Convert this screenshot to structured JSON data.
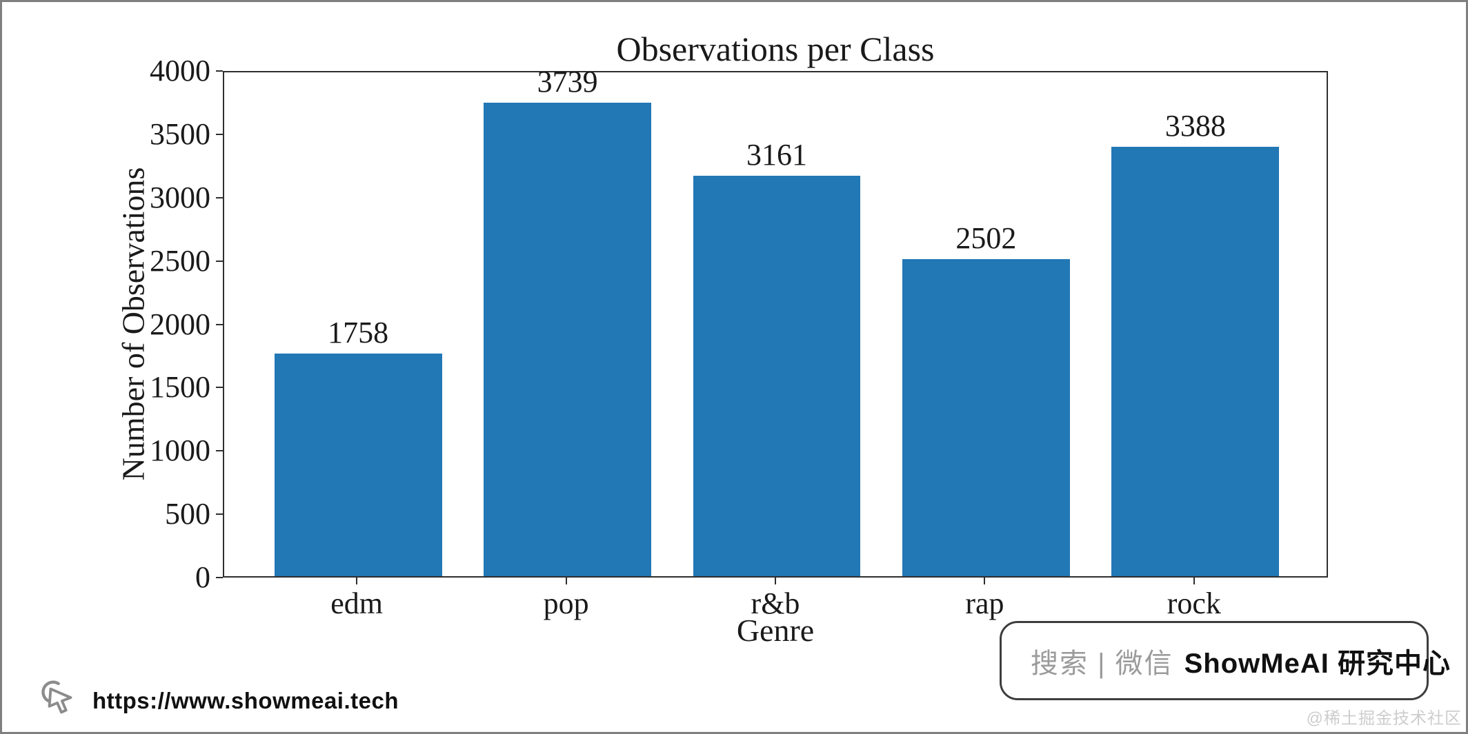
{
  "chart_data": {
    "type": "bar",
    "title": "Observations per Class",
    "xlabel": "Genre",
    "ylabel": "Number of Observations",
    "categories": [
      "edm",
      "pop",
      "r&b",
      "rap",
      "rock"
    ],
    "values": [
      1758,
      3739,
      3161,
      2502,
      3388
    ],
    "ylim": [
      0,
      4000
    ],
    "yticks": [
      0,
      500,
      1000,
      1500,
      2000,
      2500,
      3000,
      3500,
      4000
    ],
    "bar_color": "#2277b5",
    "grid": "off",
    "legend": "none"
  },
  "watermark": {
    "url": "https://www.showmeai.tech",
    "cursor_icon": "mouse-cursor-with-arc",
    "icon_color": "#8c8c8c"
  },
  "badge": {
    "search_icon": "magnifier",
    "search_text": "搜索 | 微信",
    "brand_text": "ShowMeAI 研究中心",
    "border_color": "#3d3d3d",
    "gray_text_color": "#9b9b9b"
  },
  "corner_credit": "@稀土掘金技术社区",
  "frame": {
    "border_color": "#7f7f7f",
    "background": "#ffffff"
  }
}
